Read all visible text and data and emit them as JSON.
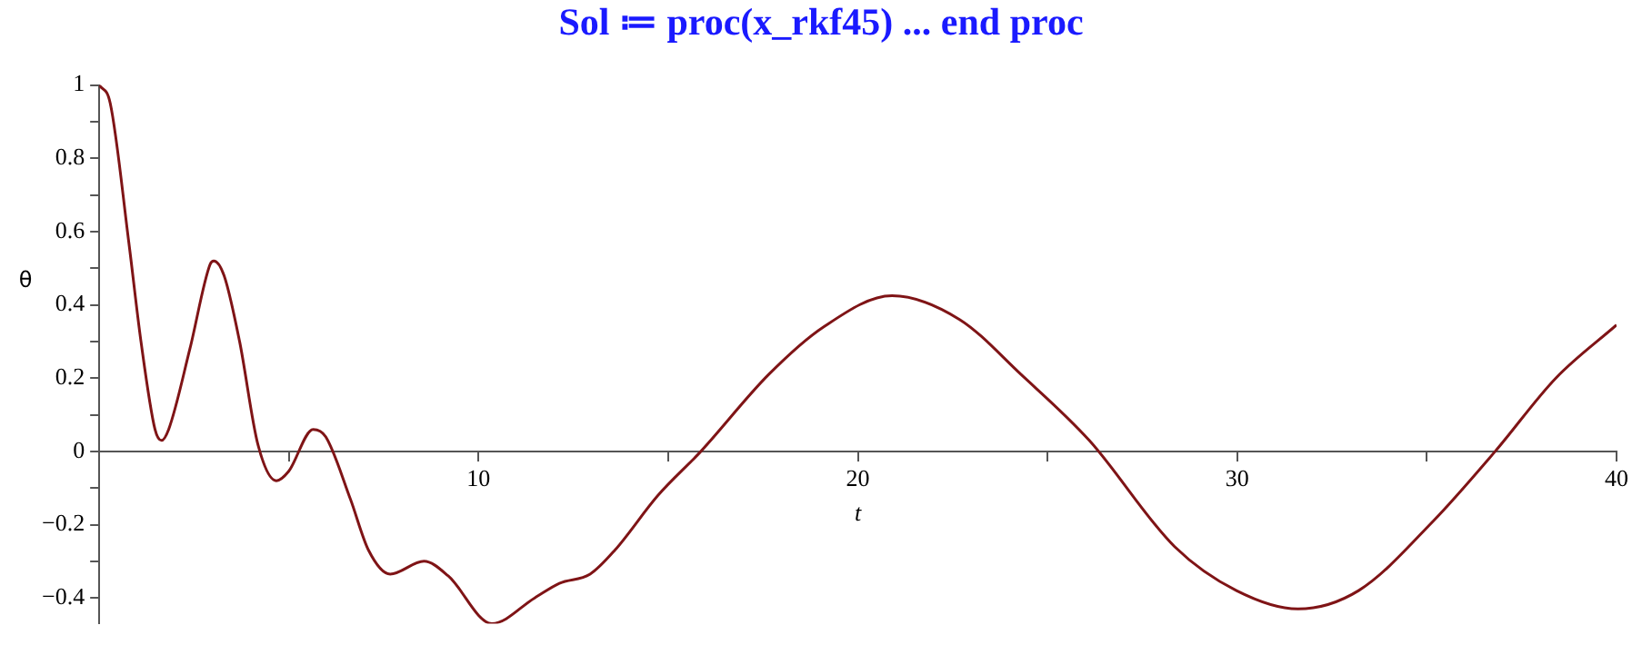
{
  "chart_data": {
    "type": "line",
    "title": "Sol ≔ proc(x_rkf45) ... end proc",
    "xlabel": "t",
    "ylabel": "θ",
    "xlim": [
      0,
      40
    ],
    "ylim": [
      -0.47,
      1
    ],
    "xticks": [
      {
        "value": 5,
        "label": null
      },
      10,
      {
        "value": 15,
        "label": null
      },
      20,
      {
        "value": 25,
        "label": null
      },
      30,
      {
        "value": 35,
        "label": null
      },
      40
    ],
    "yticks": [
      -0.4,
      {
        "value": -0.3,
        "label": null
      },
      -0.2,
      {
        "value": -0.1,
        "label": null
      },
      0,
      {
        "value": 0.1,
        "label": null
      },
      0.2,
      {
        "value": 0.3,
        "label": null
      },
      0.4,
      {
        "value": 0.5,
        "label": null
      },
      0.6,
      {
        "value": 0.7,
        "label": null
      },
      0.8,
      {
        "value": 0.9,
        "label": null
      },
      1
    ],
    "grid": false,
    "marker": "none",
    "line_style": "solid",
    "series": [
      {
        "color": "#7f1416",
        "x": [
          0,
          0.29,
          0.78,
          1.1,
          1.47,
          1.64,
          1.83,
          2.39,
          2.92,
          3.02,
          3.29,
          3.7,
          4.18,
          4.67,
          4.99,
          5.64,
          5.97,
          6.62,
          7.1,
          7.67,
          8.56,
          9.2,
          10.35,
          11.48,
          12.13,
          12.94,
          13.59,
          14.73,
          15.86,
          17.65,
          19.1,
          20.9,
          22.68,
          24.3,
          26.1,
          28.35,
          29.98,
          31.6,
          33.2,
          35.17,
          36.8,
          38.4,
          40
        ],
        "values": [
          1,
          0.95,
          0.57,
          0.3,
          0.06,
          0.03,
          0.06,
          0.28,
          0.51,
          0.52,
          0.48,
          0.3,
          0.02,
          -0.08,
          -0.055,
          0.06,
          0.04,
          -0.13,
          -0.27,
          -0.335,
          -0.3,
          -0.34,
          -0.47,
          -0.4,
          -0.36,
          -0.335,
          -0.27,
          -0.12,
          0,
          0.21,
          0.34,
          0.425,
          0.36,
          0.21,
          0.03,
          -0.26,
          -0.38,
          -0.43,
          -0.38,
          -0.19,
          0,
          0.2,
          0.345
        ]
      }
    ]
  }
}
